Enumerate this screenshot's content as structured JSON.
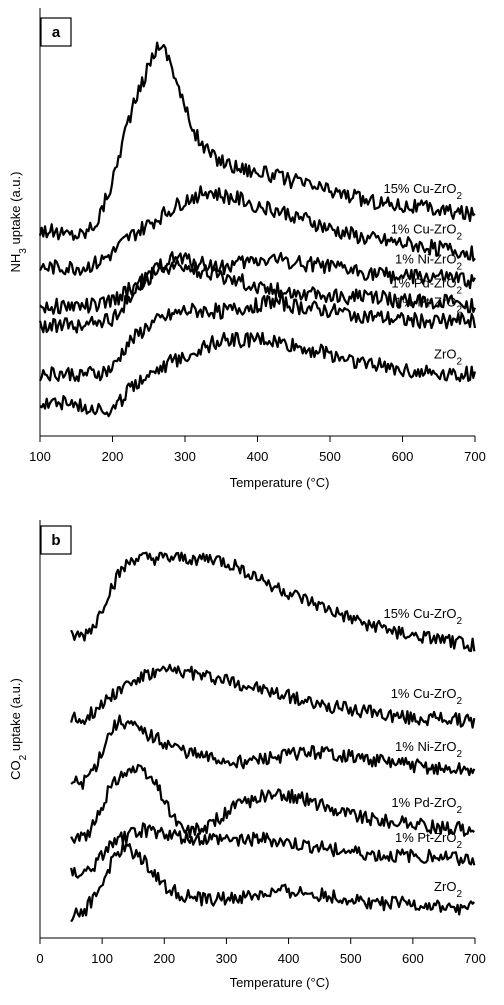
{
  "chart_data": [
    {
      "panel": "a",
      "type": "line",
      "xlabel": "Temperature (°C)",
      "ylabel_main": "NH",
      "ylabel_sub": "3",
      "ylabel_rest": " uptake (a.u.)",
      "xlim": [
        100,
        700
      ],
      "xticks": [
        "100",
        "200",
        "300",
        "400",
        "500",
        "600",
        "700"
      ],
      "y_ticks_shown": false,
      "series": [
        {
          "name": "15% Cu-ZrO₂",
          "label_main": "15% Cu-ZrO",
          "label_sub": "2",
          "x": [
            100,
            130,
            160,
            180,
            200,
            220,
            240,
            255,
            265,
            280,
            300,
            320,
            340,
            370,
            400,
            450,
            500,
            550,
            600,
            650,
            700
          ],
          "y": [
            2.4,
            2.3,
            2.3,
            2.6,
            3.4,
            4.6,
            5.4,
            6.0,
            6.3,
            5.9,
            4.9,
            4.2,
            3.9,
            3.7,
            3.6,
            3.4,
            3.2,
            3.0,
            2.9,
            2.8,
            2.7
          ]
        },
        {
          "name": "1% Cu-ZrO₂",
          "label_main": "1% Cu-ZrO",
          "label_sub": "2",
          "x": [
            100,
            130,
            160,
            180,
            200,
            220,
            250,
            280,
            300,
            330,
            350,
            380,
            400,
            450,
            500,
            550,
            600,
            650,
            700
          ],
          "y": [
            1.6,
            1.6,
            1.6,
            1.7,
            1.9,
            2.2,
            2.5,
            2.8,
            3.0,
            3.2,
            3.1,
            3.0,
            2.9,
            2.7,
            2.4,
            2.2,
            2.1,
            2.0,
            1.9
          ]
        },
        {
          "name": "1% Ni-ZrO₂",
          "label_main": "1% Ni-ZrO",
          "label_sub": "2",
          "x": [
            100,
            130,
            160,
            180,
            200,
            220,
            250,
            270,
            290,
            320,
            350,
            380,
            420,
            460,
            500,
            550,
            600,
            650,
            700
          ],
          "y": [
            0.8,
            0.8,
            0.8,
            0.8,
            0.9,
            1.1,
            1.4,
            1.7,
            1.8,
            1.7,
            1.6,
            1.7,
            1.8,
            1.7,
            1.6,
            1.5,
            1.4,
            1.4,
            1.3
          ]
        },
        {
          "name": "1% Pd-ZrO₂",
          "label_main": "1% Pd-ZrO",
          "label_sub": "2",
          "x": [
            100,
            130,
            160,
            180,
            200,
            220,
            240,
            260,
            280,
            300,
            330,
            360,
            400,
            450,
            500,
            550,
            600,
            650,
            700
          ],
          "y": [
            0.4,
            0.4,
            0.4,
            0.5,
            0.5,
            0.9,
            1.3,
            1.5,
            1.6,
            1.6,
            1.5,
            1.4,
            1.2,
            1.1,
            1.0,
            1.0,
            0.9,
            0.9,
            0.8
          ]
        },
        {
          "name": "1% Pt-ZrO₂",
          "label_main": "1% Pt-ZrO",
          "label_sub": "2",
          "x": [
            100,
            130,
            160,
            180,
            200,
            220,
            250,
            280,
            300,
            330,
            360,
            390,
            420,
            450,
            500,
            550,
            600,
            650,
            700
          ],
          "y": [
            -0.6,
            -0.6,
            -0.6,
            -0.6,
            -0.5,
            0.0,
            0.4,
            0.6,
            0.7,
            0.7,
            0.7,
            0.8,
            0.9,
            0.8,
            0.7,
            0.6,
            0.5,
            0.5,
            0.5
          ]
        },
        {
          "name": "ZrO₂",
          "label_main": "ZrO",
          "label_sub": "2",
          "x": [
            100,
            130,
            160,
            180,
            200,
            210,
            230,
            260,
            290,
            320,
            350,
            380,
            410,
            440,
            470,
            500,
            550,
            600,
            650,
            700
          ],
          "y": [
            -1.2,
            -1.2,
            -1.3,
            -1.3,
            -1.4,
            -1.2,
            -0.8,
            -0.5,
            -0.3,
            -0.1,
            0.1,
            0.1,
            0.1,
            0.0,
            -0.1,
            -0.2,
            -0.4,
            -0.5,
            -0.6,
            -0.6
          ]
        }
      ]
    },
    {
      "panel": "b",
      "type": "line",
      "xlabel": "Temperature (°C)",
      "ylabel_main": "CO",
      "ylabel_sub": "2",
      "ylabel_rest": " uptake (a.u.)",
      "xlim": [
        0,
        700
      ],
      "xticks": [
        "0",
        "100",
        "200",
        "300",
        "400",
        "500",
        "600",
        "700"
      ],
      "y_ticks_shown": false,
      "series": [
        {
          "name": "15% Cu-ZrO₂",
          "label_main": "15% Cu-ZrO",
          "label_sub": "2",
          "x": [
            50,
            70,
            90,
            110,
            130,
            150,
            180,
            220,
            260,
            280,
            320,
            360,
            400,
            450,
            500,
            550,
            600,
            650,
            700
          ],
          "y": [
            5.0,
            5.0,
            5.3,
            6.0,
            6.5,
            6.8,
            6.8,
            6.8,
            6.8,
            6.8,
            6.6,
            6.3,
            6.0,
            5.7,
            5.4,
            5.2,
            5.0,
            4.9,
            4.8
          ]
        },
        {
          "name": "1% Cu-ZrO₂",
          "label_main": "1% Cu-ZrO",
          "label_sub": "2",
          "x": [
            50,
            70,
            90,
            110,
            140,
            170,
            200,
            220,
            260,
            300,
            350,
            400,
            450,
            500,
            550,
            600,
            650,
            700
          ],
          "y": [
            3.1,
            3.1,
            3.3,
            3.6,
            3.9,
            4.1,
            4.2,
            4.2,
            4.1,
            4.0,
            3.8,
            3.6,
            3.4,
            3.3,
            3.2,
            3.1,
            3.1,
            3.0
          ]
        },
        {
          "name": "1% Ni-ZrO₂",
          "label_main": "1% Ni-ZrO",
          "label_sub": "2",
          "x": [
            50,
            70,
            90,
            110,
            125,
            140,
            160,
            190,
            220,
            260,
            300,
            340,
            380,
            420,
            460,
            500,
            550,
            600,
            650,
            700
          ],
          "y": [
            1.6,
            1.6,
            2.0,
            2.7,
            3.0,
            3.0,
            2.8,
            2.6,
            2.4,
            2.2,
            2.1,
            2.1,
            2.2,
            2.3,
            2.3,
            2.2,
            2.1,
            2.0,
            1.9,
            1.9
          ]
        },
        {
          "name": "1% Pd-ZrO₂",
          "label_main": "1% Pd-ZrO",
          "label_sub": "2",
          "x": [
            50,
            70,
            90,
            110,
            130,
            150,
            170,
            190,
            210,
            230,
            260,
            290,
            320,
            360,
            400,
            430,
            470,
            520,
            570,
            620,
            700
          ],
          "y": [
            0.3,
            0.3,
            0.7,
            1.4,
            1.8,
            1.9,
            1.8,
            1.5,
            0.9,
            0.5,
            0.5,
            0.8,
            1.1,
            1.3,
            1.3,
            1.2,
            1.0,
            0.8,
            0.7,
            0.6,
            0.5
          ]
        },
        {
          "name": "1% Pt-ZrO₂",
          "label_main": "1% Pt-ZrO",
          "label_sub": "2",
          "x": [
            50,
            70,
            90,
            110,
            130,
            160,
            180,
            210,
            240,
            280,
            320,
            360,
            400,
            450,
            500,
            550,
            600,
            650,
            700
          ],
          "y": [
            -0.5,
            -0.5,
            -0.3,
            0.1,
            0.3,
            0.5,
            0.5,
            0.4,
            0.3,
            0.3,
            0.3,
            0.3,
            0.2,
            0.1,
            0.0,
            -0.1,
            -0.1,
            -0.1,
            -0.2
          ]
        },
        {
          "name": "ZrO₂",
          "label_main": "ZrO",
          "label_sub": "2",
          "x": [
            50,
            70,
            90,
            110,
            125,
            140,
            160,
            180,
            200,
            230,
            260,
            300,
            350,
            400,
            450,
            500,
            550,
            600,
            650,
            700
          ],
          "y": [
            -1.5,
            -1.4,
            -1.0,
            -0.4,
            0.0,
            0.1,
            -0.1,
            -0.4,
            -0.8,
            -1.0,
            -1.1,
            -1.1,
            -1.0,
            -0.9,
            -1.0,
            -1.1,
            -1.2,
            -1.2,
            -1.3,
            -1.3
          ]
        }
      ]
    }
  ]
}
